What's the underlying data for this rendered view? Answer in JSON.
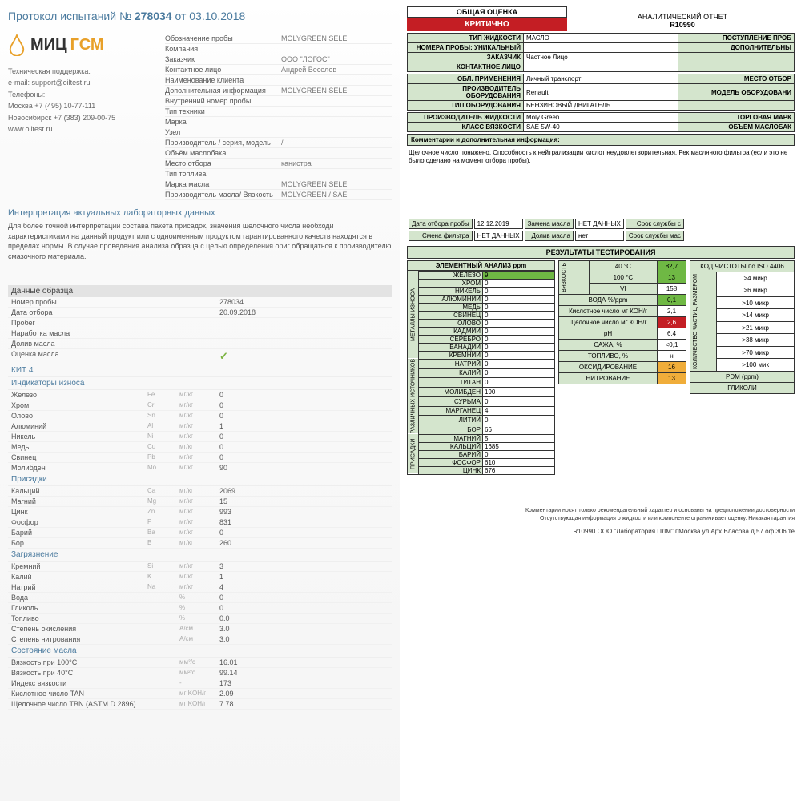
{
  "left": {
    "title_pre": "Протокол испытаний № ",
    "title_num": "278034",
    "title_post": " от 03.10.2018",
    "logo_mits": "МИЦ",
    "logo_gsm": "ГСМ",
    "support": {
      "l1": "Техническая поддержка:",
      "l2": "e-mail: support@oiltest.ru",
      "l3": "Телефоны:",
      "l4": "Москва +7 (495) 10-77-111",
      "l5": "Новосибирск +7 (383) 209-00-75",
      "l6": "www.oiltest.ru"
    },
    "info": [
      {
        "l": "Обозначение пробы",
        "v": "MOLYGREEN SELE"
      },
      {
        "l": "Компания",
        "v": ""
      },
      {
        "l": "Заказчик",
        "v": "ООО \"ЛОГОС\""
      },
      {
        "l": "Контактное лицо",
        "v": "Андрей Веселов"
      },
      {
        "l": "Наименование клиента",
        "v": ""
      },
      {
        "l": "Дополнительная информация",
        "v": "MOLYGREEN SELE"
      },
      {
        "l": "Внутренний номер пробы",
        "v": ""
      },
      {
        "l": "Тип техники",
        "v": ""
      },
      {
        "l": "Марка",
        "v": ""
      },
      {
        "l": "Узел",
        "v": ""
      },
      {
        "l": "Производитель / серия, модель",
        "v": "/"
      },
      {
        "l": "Объём маслобака",
        "v": ""
      },
      {
        "l": "Место отбора",
        "v": "канистра"
      },
      {
        "l": "Тип топлива",
        "v": ""
      },
      {
        "l": "Марка масла",
        "v": "MOLYGREEN SELE"
      },
      {
        "l": "Производитель масла/ Вязкость",
        "v": "MOLYGREEN / SAE"
      }
    ],
    "interp_h": "Интерпретация актуальных лабораторных данных",
    "interp_p": "Для более точной интерпретации состава пакета присадок, значения щелочного числа необходи характеристиками на данный продукт или с одноименным продуктом гарантированного качеств находятся в пределах нормы. В случае проведения анализа образца с целью определения ориг обращаться к производителю смазочного материала.",
    "sect_sample": "Данные образца",
    "sample_rows": [
      {
        "n": "Номер пробы",
        "v": "278034"
      },
      {
        "n": "Дата отбора",
        "v": "20.09.2018"
      },
      {
        "n": "Пробег",
        "v": ""
      },
      {
        "n": "Наработка масла",
        "v": ""
      },
      {
        "n": "Долив масла",
        "v": ""
      },
      {
        "n": "Оценка масла",
        "v": "✓",
        "check": true
      }
    ],
    "kit": "КИТ 4",
    "wear_h": "Индикаторы износа",
    "wear": [
      {
        "n": "Железо",
        "s": "Fe",
        "u": "мг/кг",
        "v": "0"
      },
      {
        "n": "Хром",
        "s": "Cr",
        "u": "мг/кг",
        "v": "0"
      },
      {
        "n": "Олово",
        "s": "Sn",
        "u": "мг/кг",
        "v": "0"
      },
      {
        "n": "Алюминий",
        "s": "Al",
        "u": "мг/кг",
        "v": "1"
      },
      {
        "n": "Никель",
        "s": "Ni",
        "u": "мг/кг",
        "v": "0"
      },
      {
        "n": "Медь",
        "s": "Cu",
        "u": "мг/кг",
        "v": "0"
      },
      {
        "n": "Свинец",
        "s": "Pb",
        "u": "мг/кг",
        "v": "0"
      },
      {
        "n": "Молибден",
        "s": "Mo",
        "u": "мг/кг",
        "v": "90"
      }
    ],
    "add_h": "Присадки",
    "add": [
      {
        "n": "Кальций",
        "s": "Ca",
        "u": "мг/кг",
        "v": "2069"
      },
      {
        "n": "Магний",
        "s": "Mg",
        "u": "мг/кг",
        "v": "15"
      },
      {
        "n": "Цинк",
        "s": "Zn",
        "u": "мг/кг",
        "v": "993"
      },
      {
        "n": "Фосфор",
        "s": "P",
        "u": "мг/кг",
        "v": "831"
      },
      {
        "n": "Барий",
        "s": "Ba",
        "u": "мг/кг",
        "v": "0"
      },
      {
        "n": "Бор",
        "s": "B",
        "u": "мг/кг",
        "v": "260"
      }
    ],
    "cont_h": "Загрязнение",
    "cont": [
      {
        "n": "Кремний",
        "s": "Si",
        "u": "мг/кг",
        "v": "3"
      },
      {
        "n": "Калий",
        "s": "K",
        "u": "мг/кг",
        "v": "1"
      },
      {
        "n": "Натрий",
        "s": "Na",
        "u": "мг/кг",
        "v": "4"
      },
      {
        "n": "Вода",
        "s": "",
        "u": "%",
        "v": "0"
      },
      {
        "n": "Гликоль",
        "s": "",
        "u": "%",
        "v": "0"
      },
      {
        "n": "Топливо",
        "s": "",
        "u": "%",
        "v": "0.0"
      },
      {
        "n": "Степень окисления",
        "s": "",
        "u": "А/см",
        "v": "3.0"
      },
      {
        "n": "Степень нитрования",
        "s": "",
        "u": "А/см",
        "v": "3.0"
      }
    ],
    "state_h": "Состояние масла",
    "state": [
      {
        "n": "Вязкость при 100°C",
        "s": "",
        "u": "мм²/с",
        "v": "16.01"
      },
      {
        "n": "Вязкость при 40°C",
        "s": "",
        "u": "мм²/с",
        "v": "99.14"
      },
      {
        "n": "Индекс вязкости",
        "s": "",
        "u": "-",
        "v": "173"
      },
      {
        "n": "Кислотное число TAN",
        "s": "",
        "u": "мг KOH/г",
        "v": "2.09"
      },
      {
        "n": "Щелочное число TBN (ASTM D 2896)",
        "s": "",
        "u": "мг KOH/г",
        "v": "7.78"
      }
    ]
  },
  "right": {
    "assess_h": "ОБЩАЯ ОЦЕНКА",
    "critical": "КРИТИЧНО",
    "report_t": "АНАЛИТИЧЕСКИЙ ОТЧЕТ",
    "report_n": "R10990",
    "g1": [
      {
        "l": "ТИП ЖИДКОСТИ",
        "v": "МАСЛО",
        "l2": "ПОСТУПЛЕНИЕ ПРОБ"
      },
      {
        "l": "НОМЕРА ПРОБЫ: УНИКАЛЬНЫЙ",
        "v": "",
        "l2": "ДОПОЛНИТЕЛЬНЫ"
      },
      {
        "l": "ЗАКАЗЧИК",
        "v": "Частное Лицо",
        "l2": ""
      },
      {
        "l": "КОНТАКТНОЕ ЛИЦО",
        "v": "",
        "l2": ""
      }
    ],
    "g2": [
      {
        "l": "ОБЛ. ПРИМЕНЕНИЯ",
        "v": "Личный транспорт",
        "l2": "МЕСТО ОТБОР"
      },
      {
        "l": "ПРОИЗВОДИТЕЛЬ ОБОРУДОВАНИЯ",
        "v": "Renault",
        "l2": "МОДЕЛЬ ОБОРУДОВАНИ"
      },
      {
        "l": "ТИП ОБОРУДОВАНИЯ",
        "v": "БЕНЗИНОВЫЙ ДВИГАТЕЛЬ",
        "l2": ""
      }
    ],
    "g3": [
      {
        "l": "ПРОИЗВОДИТЕЛЬ ЖИДКОСТИ",
        "v": "Moly Green",
        "l2": "ТОРГОВАЯ МАРК"
      },
      {
        "l": "КЛАСС ВЯЗКОСТИ",
        "v": "SAE 5W-40",
        "l2": "ОБЪЕМ МАСЛОБАК"
      }
    ],
    "comment_h": "Комментарии и дополнительная информация:",
    "comment_t": "Щелочное число понижено. Способность к нейтрализации кислот неудовлетворительная. Рек масляного фильтра (если это не было сделано на момент отбора пробы).",
    "dates": {
      "d1l": "Дата отбора пробы",
      "d1v": "12.12.2019",
      "d2l": "Замена масла",
      "d2v": "НЕТ ДАННЫХ",
      "d3l": "Срок службы с",
      "d4l": "Смена фильтра",
      "d4v": "НЕТ ДАННЫХ",
      "d5l": "Долив масла",
      "d5v": "нет",
      "d6l": "Срок службы мас"
    },
    "results_h": "РЕЗУЛЬТАТЫ ТЕСТИРОВАНИЯ",
    "elem_h": "ЭЛЕМЕНТНЫЙ АНАЛИЗ ppm",
    "cat_wear": "МЕТАЛЛЫ ИЗНОСА",
    "cat_src": "РАЗЛИЧНЫХ ИСТОЧНИКОВ",
    "cat_add": "ПРИСАДКИ",
    "elem_wear": [
      {
        "n": "ЖЕЛЕЗО",
        "v": "9",
        "cls": "g"
      },
      {
        "n": "ХРОМ",
        "v": "0"
      },
      {
        "n": "НИКЕЛЬ",
        "v": "0"
      },
      {
        "n": "АЛЮМИНИЙ",
        "v": "0"
      },
      {
        "n": "МЕДЬ",
        "v": "0"
      },
      {
        "n": "СВИНЕЦ",
        "v": "0"
      },
      {
        "n": "ОЛОВО",
        "v": "0"
      },
      {
        "n": "КАДМИЙ",
        "v": "0"
      },
      {
        "n": "СЕРЕБРО",
        "v": "0"
      },
      {
        "n": "ВАНАДИЙ",
        "v": "0"
      },
      {
        "n": "КРЕМНИЙ",
        "v": "0"
      }
    ],
    "elem_src": [
      {
        "n": "НАТРИЙ",
        "v": "0"
      },
      {
        "n": "КАЛИЙ",
        "v": "0"
      },
      {
        "n": "ТИТАН",
        "v": "0"
      },
      {
        "n": "МОЛИБДЕН",
        "v": "190"
      },
      {
        "n": "СУРЬМА",
        "v": "0"
      },
      {
        "n": "МАРГАНЕЦ",
        "v": "4"
      },
      {
        "n": "ЛИТИЙ",
        "v": "0"
      },
      {
        "n": "БОР",
        "v": "66"
      }
    ],
    "elem_add": [
      {
        "n": "МАГНИЙ",
        "v": "5"
      },
      {
        "n": "КАЛЬЦИЙ",
        "v": "1685"
      },
      {
        "n": "БАРИЙ",
        "v": "0"
      },
      {
        "n": "ФОСФОР",
        "v": "610"
      },
      {
        "n": "ЦИНК",
        "v": "676"
      }
    ],
    "mid": {
      "visc_l": "ВЯЗКОСТЬ",
      "t40": "40 °C",
      "t40v": "82,7",
      "t40c": "g",
      "t100": "100 °C",
      "t100v": "13",
      "t100c": "g",
      "vi": "VI",
      "viv": "158",
      "water": "ВОДА %/ppm",
      "waterv": "0,1",
      "waterc": "g",
      "acid": "Кислотное число мг КОН/г",
      "acidv": "2,1",
      "base": "Щелочное число мг КОН/г",
      "basev": "2,6",
      "basec": "rd",
      "ph": "pH",
      "phv": "6,4",
      "soot": "САЖА, %",
      "sootv": "<0,1",
      "fuel": "ТОПЛИВО, %",
      "fuelv": "н",
      "ox": "ОКСИДИРОВАНИЕ",
      "oxv": "16",
      "oxc": "y",
      "nit": "НИТРОВАНИЕ",
      "nitv": "13",
      "nitc": "y"
    },
    "rr": {
      "code_h": "КОД ЧИСТОТЫ по ISO 4406",
      "part_l": "КОЛИЧЕСТВО ЧАСТИЦ РАЗМЕРОМ",
      "p4": ">4 микр",
      "p6": ">6 микр",
      "p10": ">10 микр",
      "p14": ">14 микр",
      "p21": ">21 микр",
      "p38": ">38 микр",
      "p70": ">70 микр",
      "p100": ">100 мик",
      "pdm": "PDM (ppm)",
      "gly": "ГЛИКОЛИ"
    },
    "footer1": "Комментарии носят только рекомендательный характер и основаны на предположении достоверности",
    "footer2": "Отсутствующая информация о жидкости или компоненте ограничивает оценку. Никакая гарантия",
    "footer3": "R10990 ООО \"Лаборатория ПЛМ\" г.Москва ул.Арх.Власова д.57 оф.306 те"
  }
}
